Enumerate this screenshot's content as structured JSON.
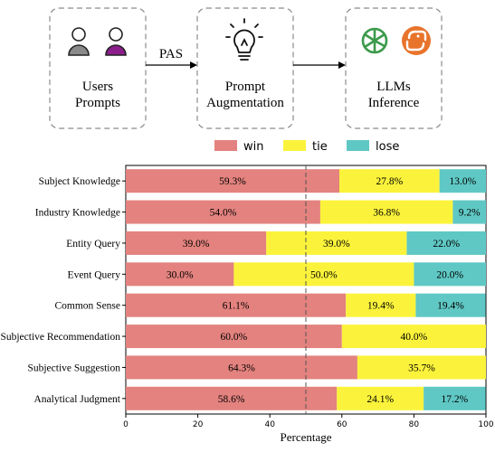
{
  "diagram": {
    "users_box": {
      "line1": "Users",
      "line2": "Prompts"
    },
    "augment_box": {
      "line1": "Prompt",
      "line2": "Augmentation"
    },
    "llm_box": {
      "line1": "LLMs",
      "line2": "Inference"
    },
    "arrow1_label": "PAS",
    "icons": [
      "user-gray-icon",
      "user-purple-icon",
      "lightbulb-icon",
      "openai-logo-icon",
      "claude-logo-icon"
    ],
    "colors": {
      "user_gray": "#8a8a8a",
      "user_purple": "#8b1e8b",
      "openai_green": "#3a9a4a",
      "orange": "#e8742c"
    }
  },
  "chart_data": {
    "type": "bar",
    "orientation": "horizontal",
    "stacked": true,
    "categories": [
      "Subject Knowledge",
      "Industry Knowledge",
      "Entity Query",
      "Event Query",
      "Common Sense",
      "Subjective Recommendation",
      "Subjective Suggestion",
      "Analytical Judgment"
    ],
    "series": [
      {
        "name": "win",
        "color": "#e3827e",
        "values": [
          59.3,
          54.0,
          39.0,
          30.0,
          61.1,
          60.0,
          64.3,
          58.6
        ],
        "labels": [
          "59.3%",
          "54.0%",
          "39.0%",
          "30.0%",
          "61.1%",
          "60.0%",
          "64.3%",
          "58.6%"
        ]
      },
      {
        "name": "tie",
        "color": "#fbf33b",
        "values": [
          27.8,
          36.8,
          39.0,
          50.0,
          19.4,
          40.0,
          35.7,
          24.1
        ],
        "labels": [
          "27.8%",
          "36.8%",
          "39.0%",
          "50.0%",
          "19.4%",
          "40.0%",
          "35.7%",
          "24.1%"
        ]
      },
      {
        "name": "lose",
        "color": "#5fc8c4",
        "values": [
          13.0,
          9.2,
          22.0,
          20.0,
          19.4,
          0,
          0,
          17.2
        ],
        "labels": [
          "13.0%",
          "9.2%",
          "22.0%",
          "20.0%",
          "19.4%",
          "",
          "",
          "17.2%"
        ]
      }
    ],
    "xlabel": "Percentage",
    "xlim": [
      0,
      100
    ],
    "xticks": [
      "0",
      "20",
      "40",
      "60",
      "80",
      "100"
    ],
    "reference_line_x": 50,
    "legend_position": "top-center"
  }
}
